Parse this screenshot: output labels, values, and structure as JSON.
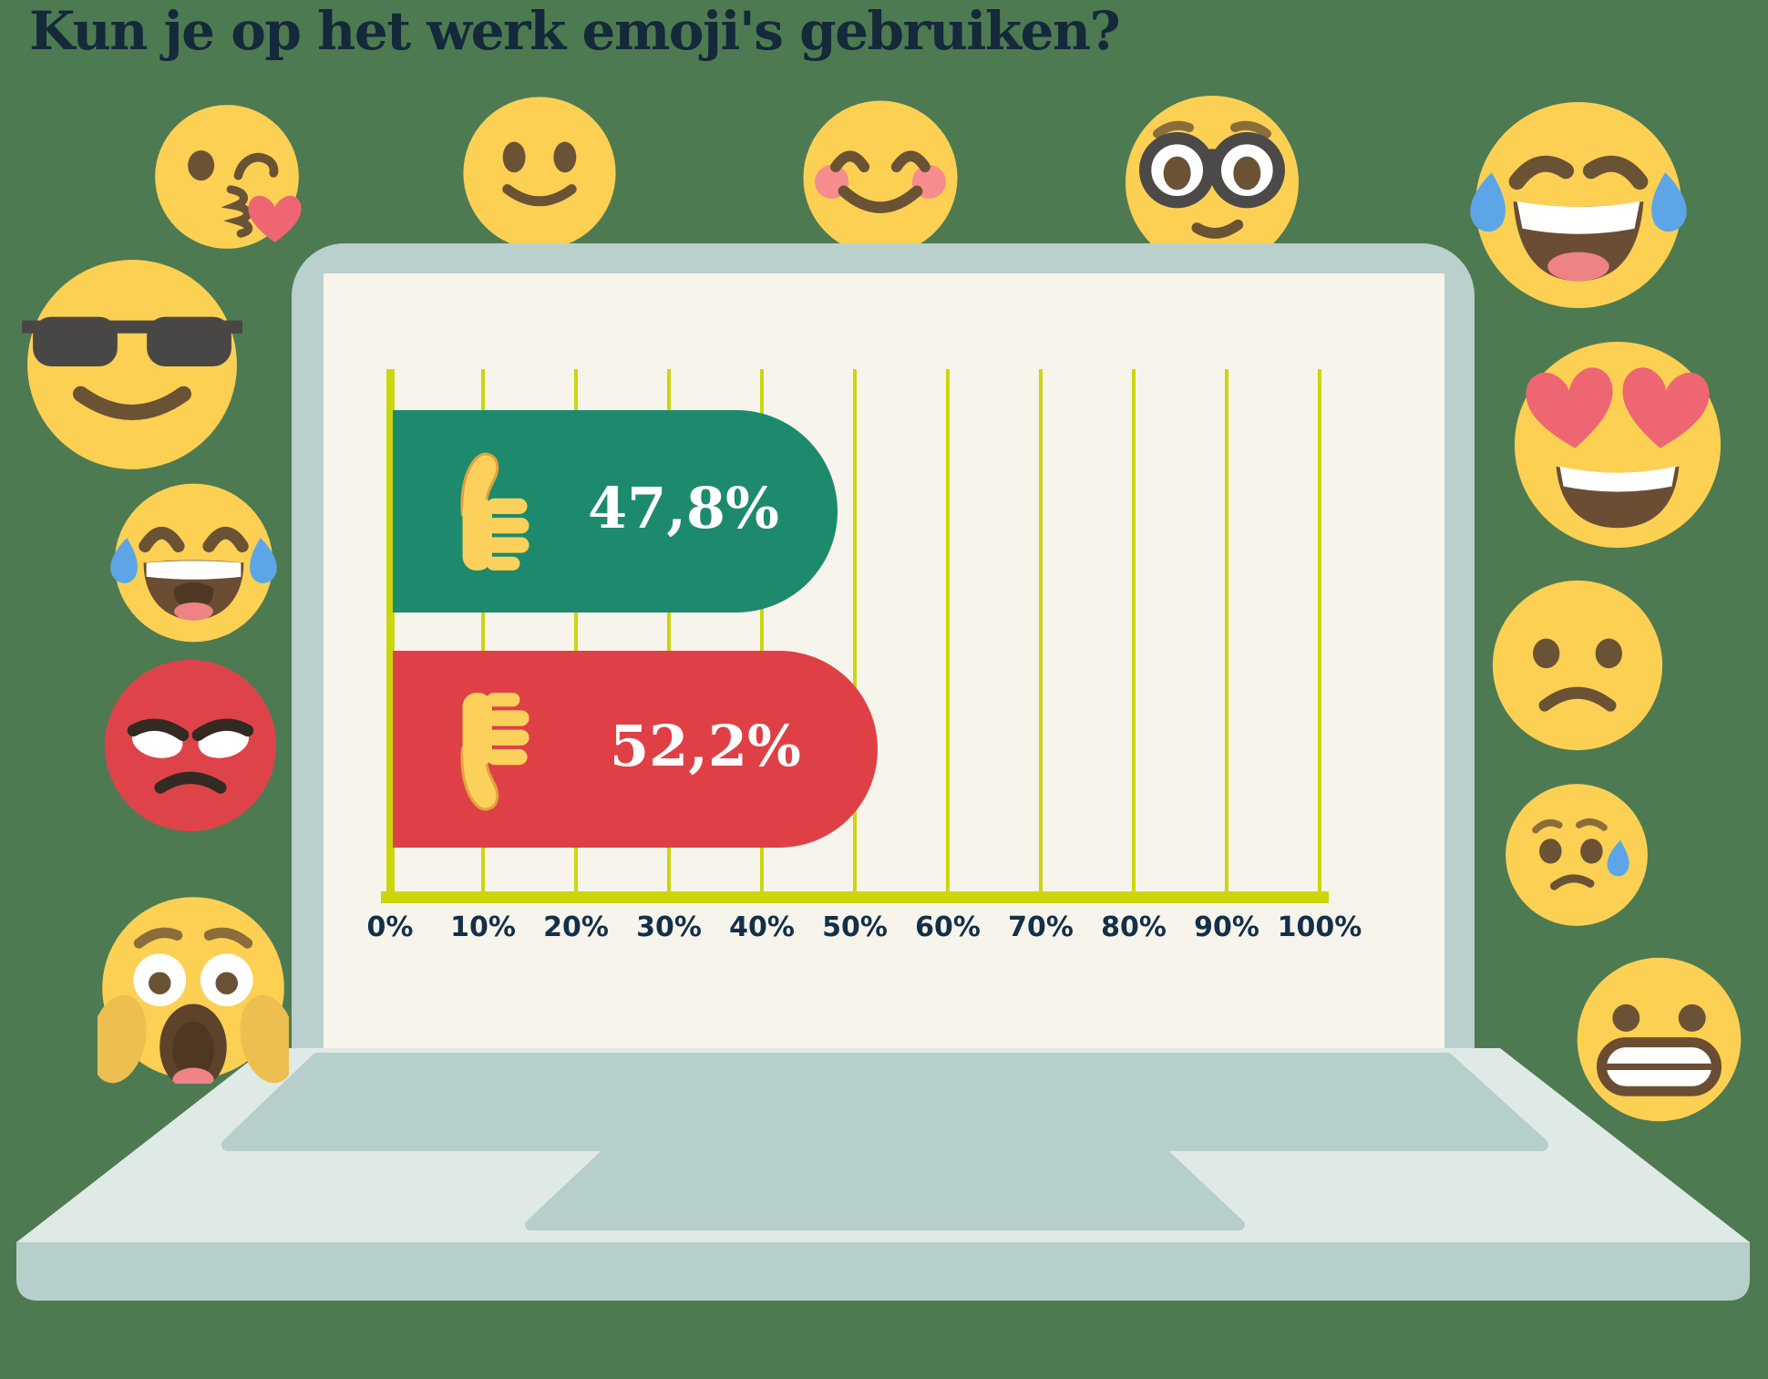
{
  "title": {
    "text": "Kun je op het werk emoji's gebruiken?"
  },
  "chart_data": {
    "type": "bar",
    "orientation": "horizontal",
    "title": "Kun je op het werk emoji's gebruiken?",
    "categories": [
      "thumbs-up (ja)",
      "thumbs-down (nee)"
    ],
    "values": [
      47.8,
      52.2
    ],
    "value_labels": [
      "47,8%",
      "52,2%"
    ],
    "bar_colors": [
      "#1d8a6e",
      "#df4046"
    ],
    "x_ticks": [
      "0%",
      "10%",
      "20%",
      "30%",
      "40%",
      "50%",
      "60%",
      "70%",
      "80%",
      "90%",
      "100%"
    ],
    "xlim": [
      0,
      100
    ],
    "grid": true,
    "grid_color": "#ccd60e",
    "plot_background": "#f7f4ec",
    "tick_label_color": "#143048",
    "legend": false
  },
  "page": {
    "background_color": "#4e7a52",
    "title_color": "#14293a"
  },
  "laptop": {
    "bezel_color": "#b9d0cd",
    "screen_color": "#f7f4ec",
    "base_color": "#dfeae7",
    "keyboard_color": "#b7cfcb"
  },
  "decorations": {
    "emoji_yellow": "#fcd053",
    "emojis": [
      "face-blowing-a-kiss",
      "slightly-smiling-face",
      "smiling-face-with-smiling-eyes",
      "nerd-face-with-glasses",
      "face-with-tears-of-joy",
      "smiling-face-with-sunglasses",
      "laughing-face-with-tears-of-joy",
      "angry-red-face",
      "face-screaming-in-fear",
      "smiling-face-with-heart-eyes",
      "frowning-face",
      "sad-face-with-sweat",
      "grimacing-face"
    ]
  }
}
